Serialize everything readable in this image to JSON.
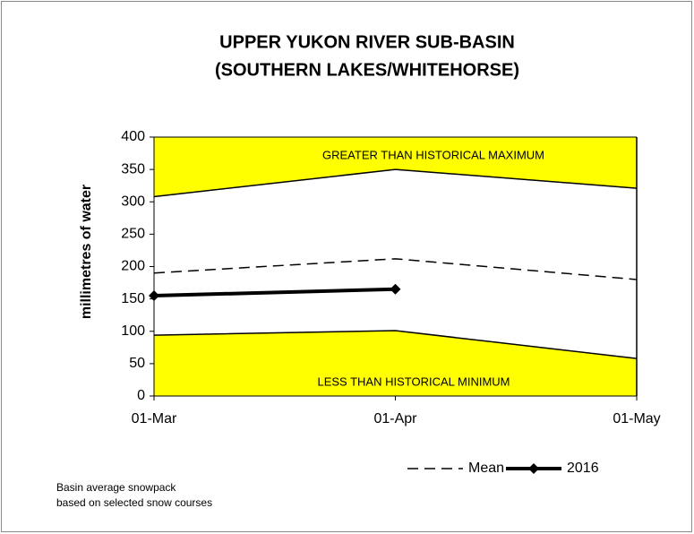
{
  "chart_data": {
    "type": "line",
    "title": [
      "UPPER YUKON RIVER SUB-BASIN",
      "(SOUTHERN LAKES/WHITEHORSE)"
    ],
    "y_label": "millimetres of water",
    "categories": [
      "01-Mar",
      "01-Apr",
      "01-May"
    ],
    "ylim": [
      0,
      400
    ],
    "yticks": [
      0,
      50,
      100,
      150,
      200,
      250,
      300,
      350,
      400
    ],
    "annotations": [
      "GREATER THAN HISTORICAL MAXIMUM",
      "LESS THAN HISTORICAL MINIMUM"
    ],
    "note": [
      "Basin average snowpack",
      "based on selected snow courses"
    ],
    "series": [
      {
        "color": "#000000",
        "values": [
          308,
          350,
          321
        ],
        "fill_to": "top",
        "fill_color": "#ffff00"
      },
      {
        "color": "#000000",
        "values": [
          94,
          101,
          58
        ],
        "fill_to": "bottom",
        "fill_color": "#ffff00"
      },
      {
        "name": "Mean",
        "color": "#000000",
        "values": [
          190,
          212,
          180
        ],
        "dashed": true
      },
      {
        "name": "2016",
        "color": "#000000",
        "values": [
          155,
          165,
          null
        ],
        "width": 4,
        "marker": "diamond"
      }
    ]
  }
}
